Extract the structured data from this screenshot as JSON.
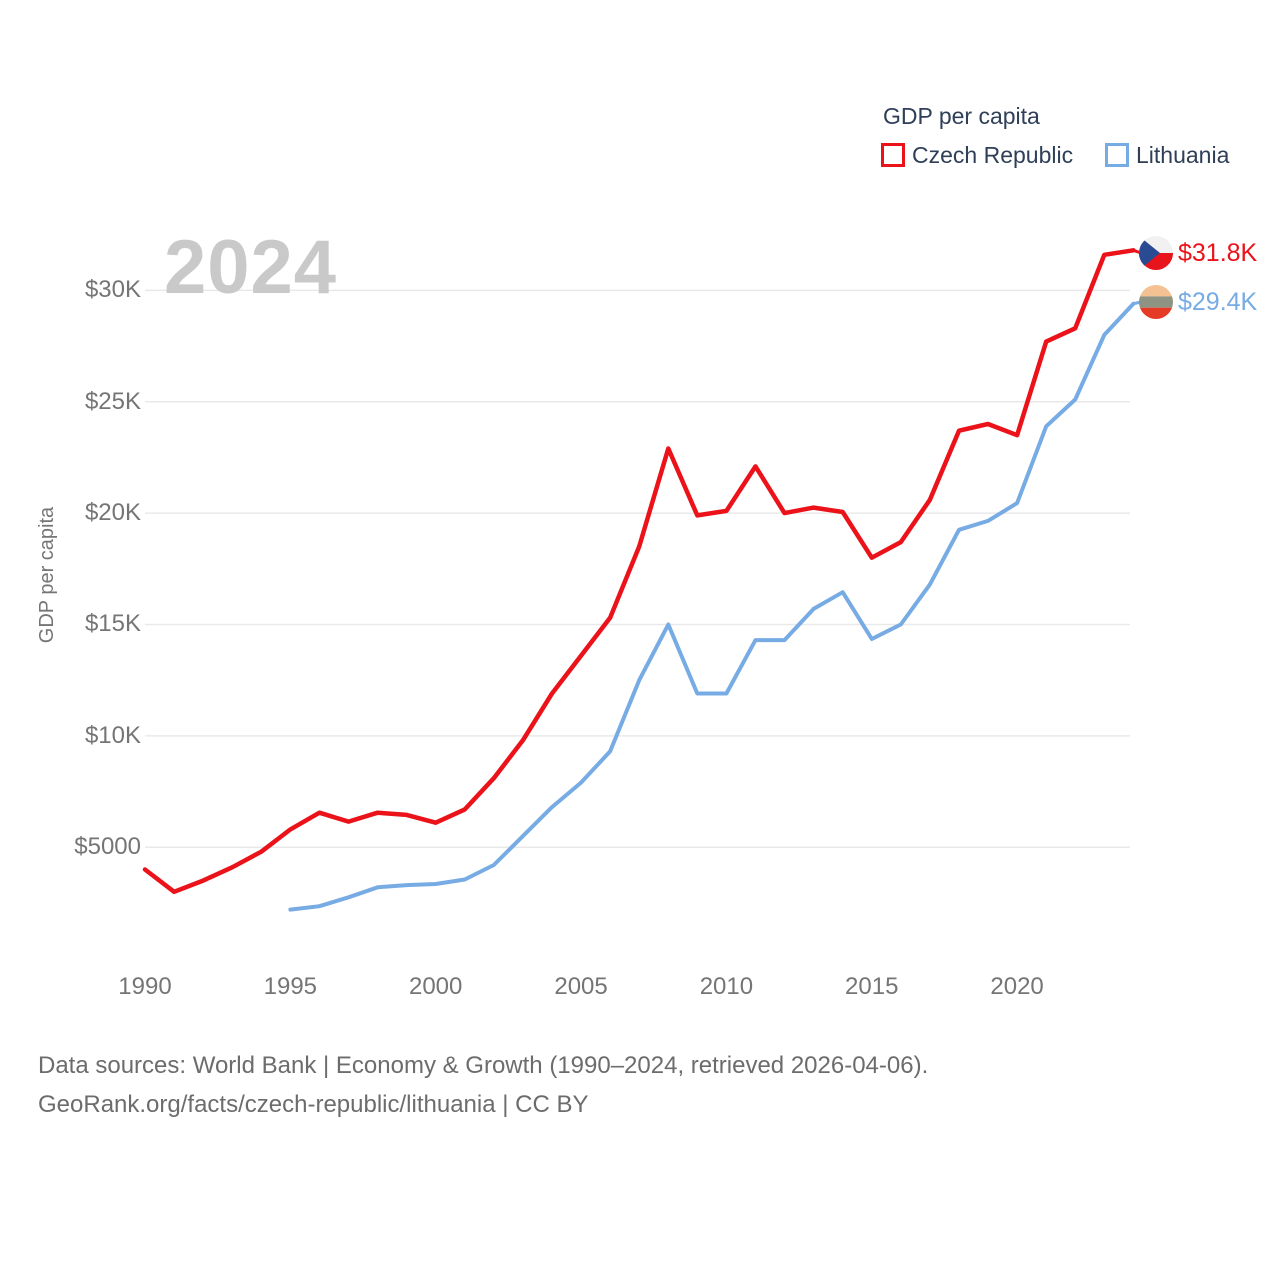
{
  "watermark_year": "2024",
  "legend": {
    "title": "GDP per capita",
    "series": [
      {
        "label": "Czech Republic",
        "color": "#eb1219"
      },
      {
        "label": "Lithuania",
        "color": "#77abe4"
      }
    ]
  },
  "y_axis": {
    "title": "GDP per capita",
    "ticks": [
      "$30K",
      "$25K",
      "$20K",
      "$15K",
      "$10K",
      "$5000"
    ],
    "tick_values": [
      30000,
      25000,
      20000,
      15000,
      10000,
      5000
    ]
  },
  "x_axis": {
    "ticks": [
      1990,
      1995,
      2000,
      2005,
      2010,
      2015,
      2020
    ]
  },
  "end_labels": [
    {
      "series": "Czech Republic",
      "text": "$31.8K",
      "flag": "czech-flag"
    },
    {
      "series": "Lithuania",
      "text": "$29.4K",
      "flag": "lithuania-flag"
    }
  ],
  "footer": {
    "line1": "Data sources: World Bank | Economy & Growth (1990–2024, retrieved 2026-04-06).",
    "line2": "GeoRank.org/facts/czech-republic/lithuania | CC BY"
  },
  "colors": {
    "czech_red": "#eb1219",
    "lithuania_blue": "#77abe4",
    "axis_text": "#757575",
    "legend_text": "#2e3f57",
    "watermark": "#c9c9c9",
    "footer_text": "#6c6c6c",
    "gridline": "#e9e9e9"
  },
  "chart_data": {
    "type": "line",
    "title": "GDP per capita",
    "ylabel": "GDP per capita",
    "xlabel": "",
    "x_range": [
      1990,
      2024
    ],
    "y_range": [
      2000,
      32000
    ],
    "grid": "horizontal-only",
    "legend_position": "top-right",
    "x": [
      1990,
      1991,
      1992,
      1993,
      1994,
      1995,
      1996,
      1997,
      1998,
      1999,
      2000,
      2001,
      2002,
      2003,
      2004,
      2005,
      2006,
      2007,
      2008,
      2009,
      2010,
      2011,
      2012,
      2013,
      2014,
      2015,
      2016,
      2017,
      2018,
      2019,
      2020,
      2021,
      2022,
      2023,
      2024
    ],
    "series": [
      {
        "name": "Czech Republic",
        "color": "#eb1219",
        "end_label": "$31.8K",
        "values": [
          4000,
          3000,
          3500,
          4100,
          4800,
          5800,
          6550,
          6150,
          6550,
          6450,
          6100,
          6700,
          8100,
          9800,
          11900,
          13600,
          15300,
          18500,
          22900,
          19900,
          20100,
          22100,
          20000,
          20250,
          20050,
          18000,
          18700,
          20600,
          23700,
          24000,
          23500,
          27700,
          28300,
          31600,
          31800
        ]
      },
      {
        "name": "Lithuania",
        "color": "#77abe4",
        "end_label": "$29.4K",
        "values": [
          null,
          null,
          null,
          null,
          null,
          2200,
          2350,
          2750,
          3200,
          3300,
          3350,
          3550,
          4200,
          5500,
          6800,
          7900,
          9300,
          12500,
          15000,
          11900,
          11900,
          14300,
          14300,
          15700,
          16450,
          14350,
          15000,
          16800,
          19250,
          19650,
          20450,
          23900,
          25100,
          28000,
          29400
        ]
      }
    ]
  }
}
